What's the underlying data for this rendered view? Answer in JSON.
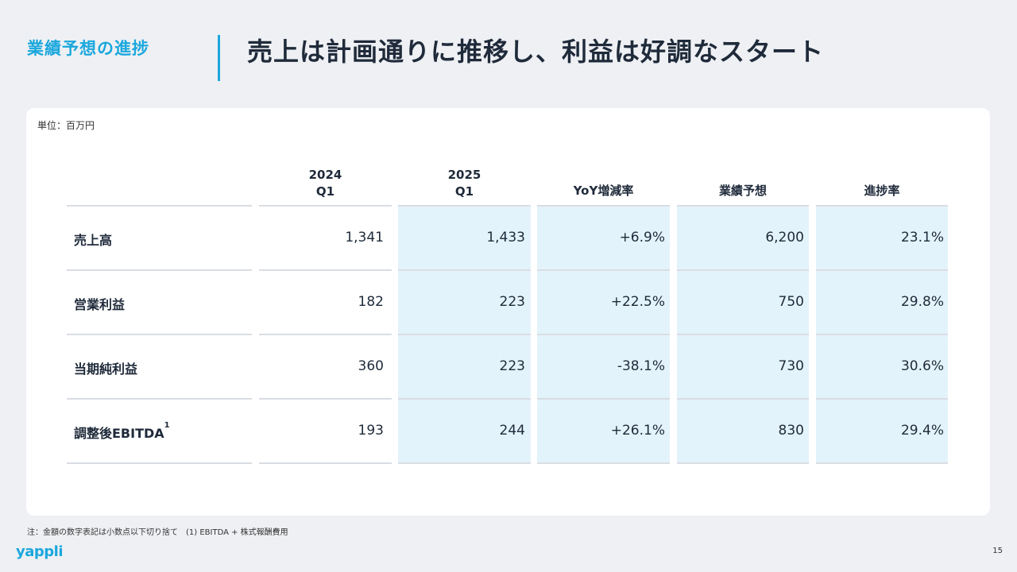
{
  "header": {
    "section_label": "業績予想の進捗",
    "title": "売上は計画通りに推移し、利益は好調なスタート"
  },
  "table": {
    "unit": "単位：百万円",
    "columns": [
      {
        "line1": "2024",
        "line2": "Q1"
      },
      {
        "line1": "2025",
        "line2": "Q1"
      },
      {
        "line1": "YoY増減率",
        "line2": ""
      },
      {
        "line1": "業績予想",
        "line2": ""
      },
      {
        "line1": "進捗率",
        "line2": ""
      }
    ],
    "rows": [
      {
        "label": "売上高",
        "sup": "",
        "values": [
          "1,341",
          "1,433",
          "+6.9%",
          "6,200",
          "23.1%"
        ]
      },
      {
        "label": "営業利益",
        "sup": "",
        "values": [
          "182",
          "223",
          "+22.5%",
          "750",
          "29.8%"
        ]
      },
      {
        "label": "当期純利益",
        "sup": "",
        "values": [
          "360",
          "223",
          "-38.1%",
          "730",
          "30.6%"
        ]
      },
      {
        "label": "調整後EBITDA",
        "sup": "1",
        "values": [
          "193",
          "244",
          "+26.1%",
          "830",
          "29.4%"
        ]
      }
    ]
  },
  "footer": {
    "note": "注：金額の数字表記は小数点以下切り捨て　(1) EBITDA + 株式報酬費用",
    "logo": "yappli",
    "page_number": "15"
  },
  "colors": {
    "accent": "#1ba7dd",
    "highlight": "#e3f3fb",
    "background": "#eef0f3"
  }
}
